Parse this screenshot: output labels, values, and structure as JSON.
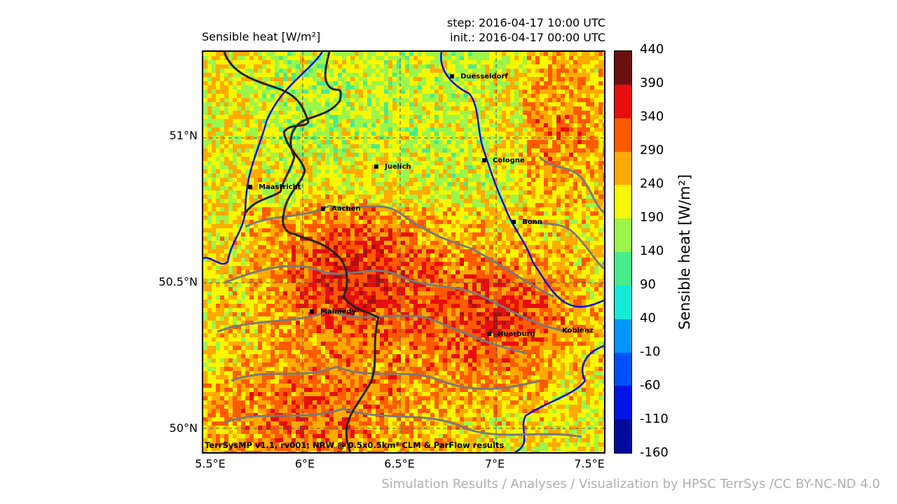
{
  "title": "Sensible heat [W/m²]",
  "step": "step: 2016-04-17 10:00 UTC",
  "init": "init.: 2016-04-17 00:00 UTC",
  "lat_labels": [
    "51°N",
    "50.5°N",
    "50°N"
  ],
  "lon_labels": [
    "5.5°E",
    "6°E",
    "6.5°E",
    "7°E",
    "7.5°E"
  ],
  "colorbar": {
    "label": "Sensible heat [W/m²]",
    "ticks": [
      "440",
      "390",
      "340",
      "290",
      "240",
      "190",
      "140",
      "90",
      "40",
      "-10",
      "-60",
      "-110",
      "-160"
    ],
    "colors": [
      "#6b0f0f",
      "#e60e0e",
      "#ff5a00",
      "#ffaa00",
      "#f7f700",
      "#9cf54a",
      "#4aeb8a",
      "#14ecd8",
      "#0096ff",
      "#0050ff",
      "#0014e6",
      "#000a9b"
    ]
  },
  "cities": [
    {
      "name": "Duesseldorf"
    },
    {
      "name": "Juelich"
    },
    {
      "name": "Cologne"
    },
    {
      "name": "Maastricht"
    },
    {
      "name": "Aachen"
    },
    {
      "name": "Bonn"
    },
    {
      "name": "Malmedy"
    },
    {
      "name": "Nuerburg"
    },
    {
      "name": "Koblenz"
    }
  ],
  "footer_note": "TerrSysMP v1.1, rv001; NRW @ 0.5x0.5km² CLM & ParFlow results",
  "credit": "Simulation Results / Analyses / Visualization by HPSC TerrSys /CC BY-NC-ND 4.0"
}
